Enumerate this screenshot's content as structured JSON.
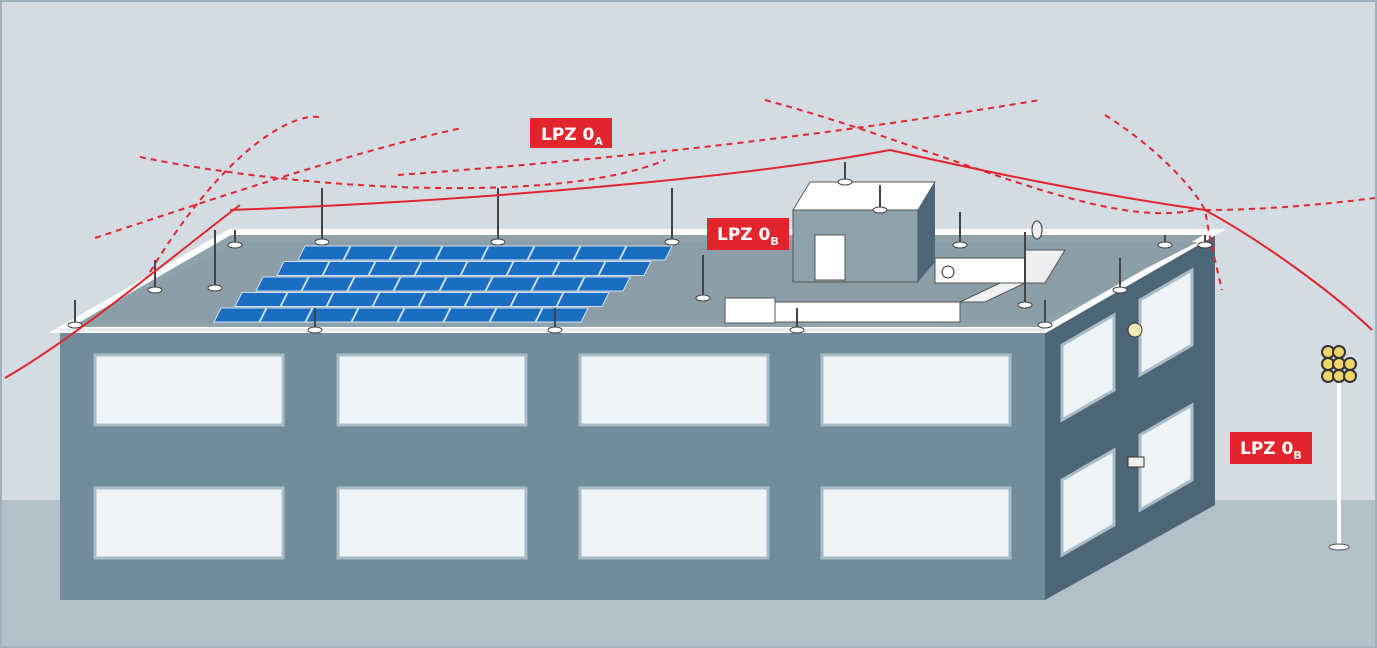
{
  "labels": [
    {
      "main": "LPZ 0",
      "sub": "A"
    },
    {
      "main": "LPZ 0",
      "sub": "B"
    },
    {
      "main": "LPZ 0",
      "sub": "B"
    }
  ]
}
